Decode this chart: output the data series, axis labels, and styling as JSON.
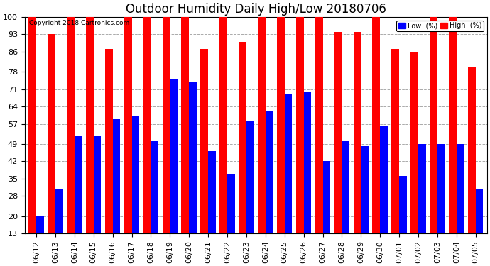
{
  "title": "Outdoor Humidity Daily High/Low 20180706",
  "copyright": "Copyright 2018 Cartronics.com",
  "dates": [
    "06/12",
    "06/13",
    "06/14",
    "06/15",
    "06/16",
    "06/17",
    "06/18",
    "06/19",
    "06/20",
    "06/21",
    "06/22",
    "06/23",
    "06/24",
    "06/25",
    "06/26",
    "06/27",
    "06/28",
    "06/29",
    "06/30",
    "07/01",
    "07/02",
    "07/03",
    "07/04",
    "07/05"
  ],
  "high": [
    100,
    93,
    100,
    100,
    87,
    100,
    100,
    100,
    100,
    87,
    100,
    90,
    100,
    100,
    100,
    100,
    94,
    94,
    100,
    87,
    86,
    100,
    100,
    80
  ],
  "low": [
    20,
    31,
    52,
    52,
    59,
    60,
    50,
    75,
    74,
    46,
    37,
    58,
    62,
    69,
    70,
    42,
    50,
    48,
    56,
    36,
    49,
    49,
    49,
    31
  ],
  "high_color": "#FF0000",
  "low_color": "#0000FF",
  "bg_color": "#FFFFFF",
  "grid_color": "#AAAAAA",
  "yticks": [
    13,
    20,
    28,
    35,
    42,
    49,
    57,
    64,
    71,
    78,
    86,
    93,
    100
  ],
  "ymin": 13,
  "ymax": 100,
  "title_fontsize": 12,
  "tick_fontsize": 8,
  "legend_label_low": "Low  (%)",
  "legend_label_high": "High  (%)"
}
